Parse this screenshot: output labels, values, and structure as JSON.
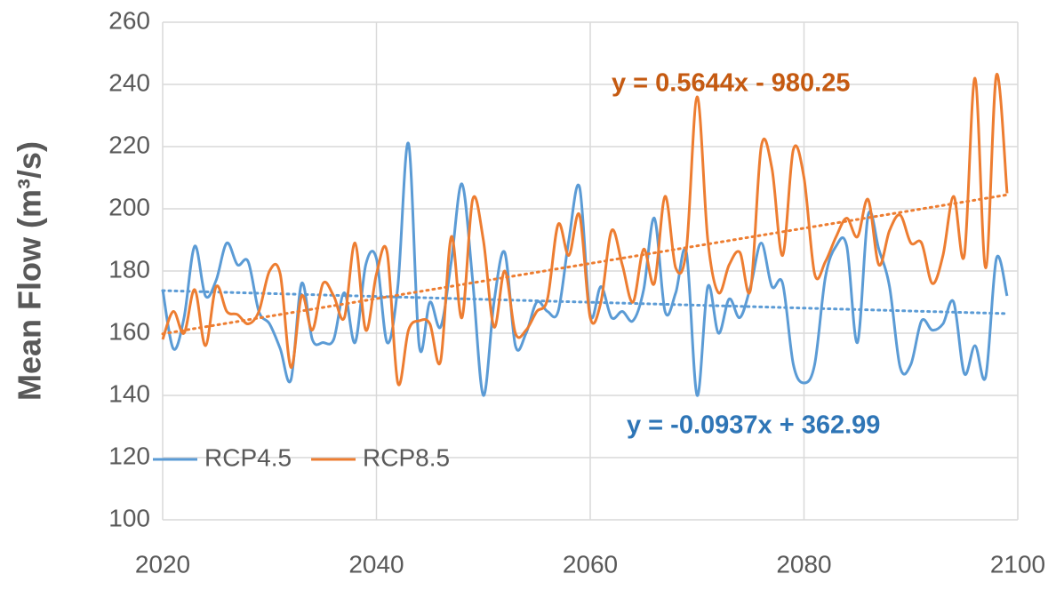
{
  "chart_data": {
    "type": "line",
    "ylabel": "Mean Flow (m³/s)",
    "xlim": [
      2020,
      2100
    ],
    "xticks": [
      2020,
      2040,
      2060,
      2080,
      2100
    ],
    "ylim": [
      100,
      260
    ],
    "yticks": [
      100,
      120,
      140,
      160,
      180,
      200,
      220,
      240,
      260
    ],
    "grid": true,
    "legend": "lower left",
    "x": [
      2020,
      2021,
      2022,
      2023,
      2024,
      2025,
      2026,
      2027,
      2028,
      2029,
      2030,
      2031,
      2032,
      2033,
      2034,
      2035,
      2036,
      2037,
      2038,
      2039,
      2040,
      2041,
      2042,
      2043,
      2044,
      2045,
      2046,
      2047,
      2048,
      2049,
      2050,
      2051,
      2052,
      2053,
      2054,
      2055,
      2056,
      2057,
      2058,
      2059,
      2060,
      2061,
      2062,
      2063,
      2064,
      2065,
      2066,
      2067,
      2068,
      2069,
      2070,
      2071,
      2072,
      2073,
      2074,
      2075,
      2076,
      2077,
      2078,
      2079,
      2080,
      2081,
      2082,
      2083,
      2084,
      2085,
      2086,
      2087,
      2088,
      2089,
      2090,
      2091,
      2092,
      2093,
      2094,
      2095,
      2096,
      2097,
      2098,
      2099
    ],
    "series": [
      {
        "name": "RCP4.5",
        "color": "#5b9bd5",
        "values": [
          174,
          155,
          165,
          188,
          172,
          177,
          189,
          182,
          183,
          167,
          163,
          155,
          145,
          176,
          158,
          157,
          158,
          173,
          157,
          182,
          184,
          157,
          175,
          221,
          156,
          170,
          162,
          183,
          208,
          177,
          140,
          170,
          186,
          156,
          160,
          170,
          167,
          167,
          190,
          207,
          166,
          175,
          165,
          167,
          164,
          174,
          197,
          167,
          173,
          186,
          140,
          175,
          160,
          171,
          165,
          175,
          189,
          175,
          176,
          150,
          144,
          150,
          178,
          188,
          188,
          157,
          198,
          187,
          175,
          149,
          150,
          164,
          161,
          163,
          170,
          147,
          156,
          146,
          184,
          172
        ],
        "trend": {
          "x": [
            2020,
            2099
          ],
          "values": [
            173.7,
            166.3
          ]
        }
      },
      {
        "name": "RCP8.5",
        "color": "#ed7d31",
        "values": [
          158,
          167,
          160,
          174,
          156,
          175,
          167,
          166,
          163,
          167,
          180,
          179,
          149,
          172,
          161,
          176,
          172,
          165,
          189,
          161,
          179,
          186,
          144,
          161,
          164,
          163,
          151,
          191,
          165,
          203,
          190,
          162,
          180,
          160,
          161,
          167,
          171,
          195,
          185,
          198,
          165,
          170,
          193,
          182,
          170,
          187,
          176,
          204,
          181,
          187,
          236,
          190,
          173,
          182,
          186,
          174,
          220,
          213,
          185,
          219,
          210,
          179,
          183,
          191,
          197,
          191,
          203,
          182,
          193,
          198,
          189,
          189,
          176,
          185,
          204,
          185,
          242,
          181,
          243,
          205
        ],
        "trend": {
          "x": [
            2020,
            2099
          ],
          "values": [
            159.8,
            204.5
          ]
        }
      }
    ],
    "annotations": [
      {
        "text": "y = 0.5644x - 980.25",
        "color": "#c55a11"
      },
      {
        "text": "y = -0.0937x + 362.99",
        "color": "#2e75b6"
      }
    ]
  }
}
